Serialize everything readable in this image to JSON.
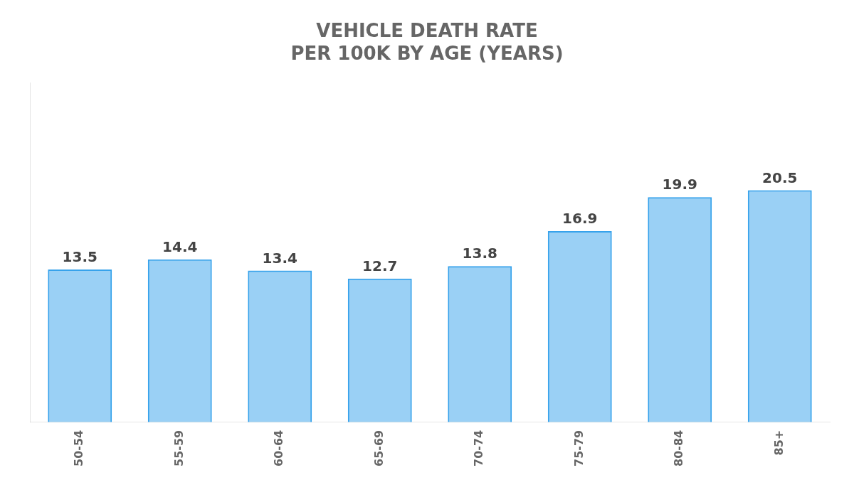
{
  "chart_data": {
    "type": "bar",
    "title": "VEHICLE DEATH RATE\nPER 100K BY AGE (YEARS)",
    "categories": [
      "50-54",
      "55-59",
      "60-64",
      "65-69",
      "70-74",
      "75-79",
      "80-84",
      "85+"
    ],
    "values": [
      13.5,
      14.4,
      13.4,
      12.7,
      13.8,
      16.9,
      19.9,
      20.5
    ],
    "ylim": [
      0,
      30
    ],
    "grid": false,
    "data_labels": true,
    "tick_labels": "x"
  }
}
